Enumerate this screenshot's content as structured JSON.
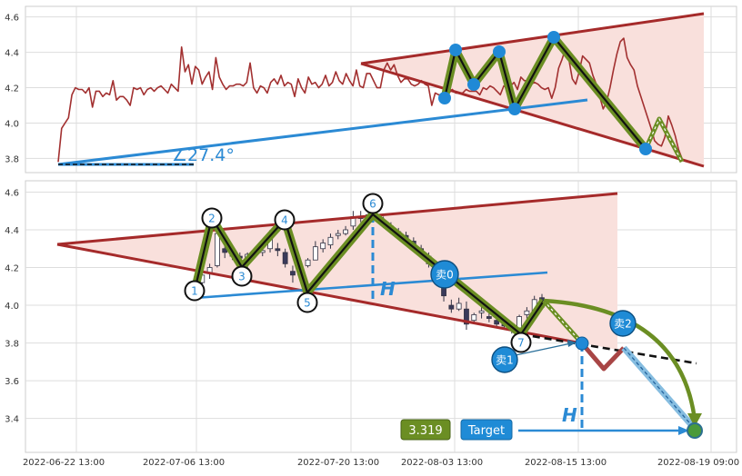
{
  "colors": {
    "background": "#ffffff",
    "panel_border": "#cccccc",
    "grid": "#dddddd",
    "price_line": "#a23030",
    "channel_line": "#a52a2a",
    "channel_fill": "#f9e0dc",
    "trend_blue": "#2b8ad4",
    "marker_blue": "#2089d6",
    "wave_olive": "#6b8e23",
    "wave_core": "#111111",
    "target_box": "#6b8e23",
    "candle_up": "#ffffff",
    "candle_down": "#3a3a5a"
  },
  "chart_data": [
    {
      "type": "line",
      "panel": "top",
      "ylim": [
        3.72,
        4.66
      ],
      "yticks": [
        "3.8",
        "4.0",
        "4.2",
        "4.4",
        "4.6"
      ],
      "ytick_values": [
        3.8,
        4.0,
        4.2,
        4.4,
        4.6
      ],
      "grid": true,
      "series": [
        {
          "values": [
            3.78,
            3.97,
            4.0,
            4.03,
            4.16,
            4.2,
            4.19,
            4.19,
            4.17,
            4.2,
            4.09,
            4.18,
            4.18,
            4.15,
            4.17,
            4.16,
            4.24,
            4.13,
            4.15,
            4.15,
            4.13,
            4.1,
            4.2,
            4.19,
            4.2,
            4.16,
            4.19,
            4.2,
            4.18,
            4.2,
            4.21,
            4.19,
            4.17,
            4.22,
            4.2,
            4.18,
            4.43,
            4.29,
            4.33,
            4.22,
            4.32,
            4.3,
            4.22,
            4.26,
            4.29,
            4.19,
            4.37,
            4.26,
            4.22,
            4.19,
            4.21,
            4.21,
            4.22,
            4.22,
            4.21,
            4.23,
            4.34,
            4.2,
            4.17,
            4.21,
            4.2,
            4.17,
            4.23,
            4.25,
            4.22,
            4.27,
            4.21,
            4.23,
            4.22,
            4.15,
            4.25,
            4.2,
            4.17,
            4.26,
            4.22,
            4.23,
            4.2,
            4.22,
            4.27,
            4.21,
            4.23,
            4.29,
            4.24,
            4.22,
            4.28,
            4.24,
            4.21,
            4.3,
            4.21,
            4.2,
            4.28,
            4.28,
            4.24,
            4.2,
            4.2,
            4.3,
            4.34,
            4.3,
            4.33,
            4.27,
            4.23,
            4.25,
            4.25,
            4.22,
            4.21,
            4.22,
            4.24,
            4.22,
            4.21,
            4.1,
            4.17,
            4.16,
            4.16,
            4.17,
            4.17,
            4.19,
            4.17,
            4.17,
            4.17,
            4.19,
            4.18,
            4.18,
            4.18,
            4.16,
            4.2,
            4.19,
            4.21,
            4.2,
            4.18,
            4.16,
            4.21,
            4.2,
            4.21,
            4.23,
            4.19,
            4.26,
            4.24,
            4.24,
            4.22,
            4.23,
            4.22,
            4.2,
            4.19,
            4.2,
            4.14,
            4.2,
            4.31,
            4.36,
            4.42,
            4.36,
            4.25,
            4.22,
            4.29,
            4.38,
            4.36,
            4.34,
            4.27,
            4.22,
            4.15,
            4.08,
            4.12,
            4.2,
            4.3,
            4.39,
            4.46,
            4.48,
            4.37,
            4.33,
            4.3,
            4.21,
            4.15,
            4.09,
            4.03,
            3.97,
            3.9,
            3.88,
            3.87,
            3.92,
            4.04,
            3.99,
            3.93,
            3.85,
            3.8
          ]
        }
      ],
      "annotation": "∠27.4°"
    },
    {
      "type": "candlestick",
      "panel": "bottom",
      "ylim": [
        3.22,
        4.66
      ],
      "yticks": [
        "3.4",
        "3.6",
        "3.8",
        "4.0",
        "4.2",
        "4.4",
        "4.6"
      ],
      "ytick_values": [
        3.4,
        3.6,
        3.8,
        4.0,
        4.2,
        4.4,
        4.6
      ],
      "xticks": [
        "2022-06-22 13:00",
        "2022-07-06 13:00",
        "2022-07-20 13:00",
        "2022-08-03 13:00",
        "2022-08-15 13:00",
        "2022-08-19 09:00"
      ],
      "grid": true,
      "candles": [
        [
          4.08,
          4.13,
          4.05,
          4.11
        ],
        [
          4.12,
          4.18,
          4.1,
          4.16
        ],
        [
          4.17,
          4.22,
          4.14,
          4.2
        ],
        [
          4.21,
          4.43,
          4.2,
          4.38
        ],
        [
          4.3,
          4.33,
          4.25,
          4.28
        ],
        [
          4.27,
          4.3,
          4.24,
          4.26
        ],
        [
          4.26,
          4.28,
          4.22,
          4.25
        ],
        [
          4.24,
          4.28,
          4.2,
          4.27
        ],
        [
          4.27,
          4.3,
          4.25,
          4.28
        ],
        [
          4.28,
          4.31,
          4.26,
          4.29
        ],
        [
          4.3,
          4.4,
          4.28,
          4.38
        ],
        [
          4.3,
          4.33,
          4.26,
          4.29
        ],
        [
          4.28,
          4.3,
          4.2,
          4.22
        ],
        [
          4.18,
          4.21,
          4.12,
          4.16
        ],
        [
          4.16,
          4.22,
          4.14,
          4.2
        ],
        [
          4.21,
          4.25,
          4.2,
          4.24
        ],
        [
          4.24,
          4.34,
          4.25,
          4.31
        ],
        [
          4.3,
          4.35,
          4.28,
          4.33
        ],
        [
          4.32,
          4.38,
          4.3,
          4.36
        ],
        [
          4.37,
          4.4,
          4.35,
          4.38
        ],
        [
          4.38,
          4.42,
          4.37,
          4.4
        ],
        [
          4.42,
          4.5,
          4.4,
          4.47
        ],
        [
          4.47,
          4.5,
          4.44,
          4.46
        ],
        [
          4.46,
          4.5,
          4.44,
          4.48
        ],
        [
          4.48,
          4.5,
          4.45,
          4.47
        ],
        [
          4.45,
          4.47,
          4.41,
          4.43
        ],
        [
          4.42,
          4.44,
          4.38,
          4.4
        ],
        [
          4.39,
          4.41,
          4.36,
          4.38
        ],
        [
          4.37,
          4.39,
          4.33,
          4.35
        ],
        [
          4.34,
          4.36,
          4.3,
          4.32
        ],
        [
          4.3,
          4.32,
          4.25,
          4.27
        ],
        [
          4.26,
          4.28,
          4.2,
          4.22
        ],
        [
          4.2,
          4.22,
          4.12,
          4.14
        ],
        [
          4.1,
          4.12,
          4.02,
          4.05
        ],
        [
          4.0,
          4.03,
          3.96,
          3.98
        ],
        [
          3.98,
          4.04,
          3.97,
          4.01
        ],
        [
          3.98,
          4.02,
          3.87,
          3.9
        ],
        [
          3.92,
          3.96,
          3.9,
          3.95
        ],
        [
          3.96,
          3.99,
          3.93,
          3.97
        ],
        [
          3.94,
          3.96,
          3.91,
          3.93
        ],
        [
          3.92,
          3.95,
          3.88,
          3.9
        ],
        [
          3.9,
          3.92,
          3.87,
          3.89
        ],
        [
          3.88,
          3.9,
          3.85,
          3.87
        ],
        [
          3.88,
          3.95,
          3.87,
          3.94
        ],
        [
          3.95,
          3.99,
          3.93,
          3.97
        ],
        [
          3.97,
          4.05,
          3.96,
          4.03
        ],
        [
          4.04,
          4.06,
          3.98,
          3.99
        ]
      ],
      "wave_labels": [
        "1",
        "2",
        "3",
        "4",
        "5",
        "6",
        "7"
      ],
      "sell_labels": [
        "卖0",
        "卖1",
        "卖2"
      ],
      "height_label": "H",
      "target_value": "3.319",
      "target_label": "Target"
    }
  ]
}
